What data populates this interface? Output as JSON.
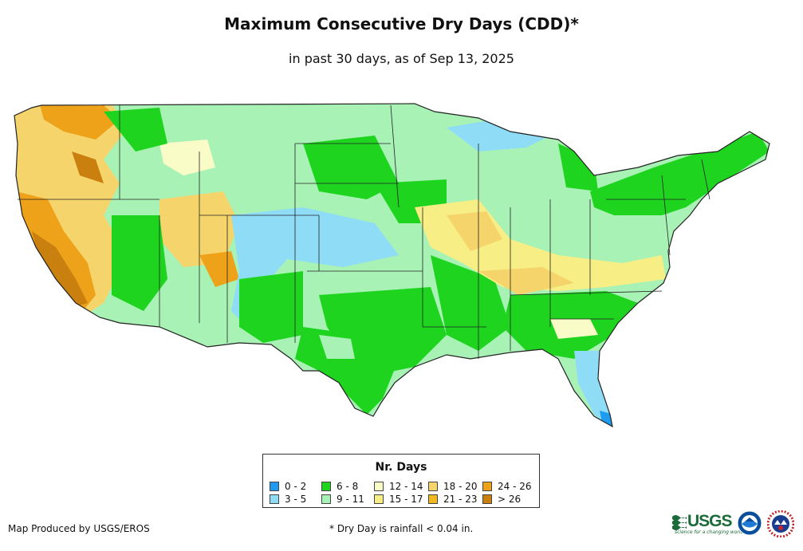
{
  "title": "Maximum Consecutive Dry Days (CDD)*",
  "subtitle": "in past 30 days, as of Sep 13, 2025",
  "legend": {
    "title": "Nr. Days",
    "items": [
      {
        "label": "0 - 2",
        "color": "#1f9bf2"
      },
      {
        "label": "3 - 5",
        "color": "#8fdcf7"
      },
      {
        "label": "6 - 8",
        "color": "#1fd41f"
      },
      {
        "label": "9 - 11",
        "color": "#a8f2b6"
      },
      {
        "label": "12 - 14",
        "color": "#fafcc8"
      },
      {
        "label": "15 - 17",
        "color": "#f7ee86"
      },
      {
        "label": "18 - 20",
        "color": "#f5d56b"
      },
      {
        "label": "21 - 23",
        "color": "#f2b81f"
      },
      {
        "label": "24 - 26",
        "color": "#eea21a"
      },
      {
        "label": "> 26",
        "color": "#c9800f"
      }
    ]
  },
  "credit": "Map Produced by USGS/EROS",
  "footnote": "* Dry Day is rainfall < 0.04 in.",
  "logos": {
    "usgs": "USGS",
    "usgs_tagline": "science for a changing world",
    "noaa": "NOAA",
    "nws": "National Weather Service"
  }
}
